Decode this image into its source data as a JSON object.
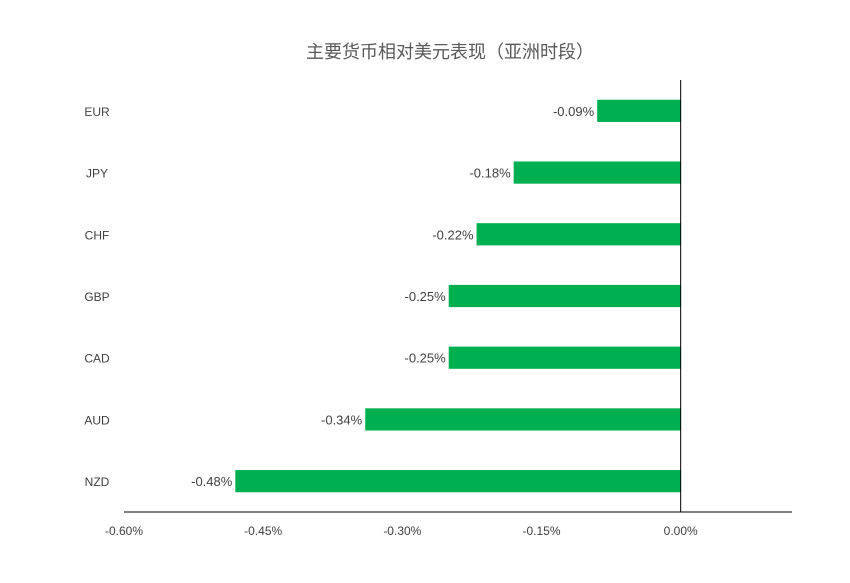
{
  "chart_data": {
    "type": "bar",
    "orientation": "horizontal",
    "title": "主要货币相对美元表现（亚洲时段）",
    "categories": [
      "EUR",
      "JPY",
      "CHF",
      "GBP",
      "CAD",
      "AUD",
      "NZD"
    ],
    "values": [
      -0.09,
      -0.18,
      -0.22,
      -0.25,
      -0.25,
      -0.34,
      -0.48
    ],
    "data_labels": [
      "-0.09%",
      "-0.18%",
      "-0.22%",
      "-0.25%",
      "-0.25%",
      "-0.34%",
      "-0.48%"
    ],
    "xlim": [
      -0.6,
      0.12
    ],
    "xticks": [
      -0.6,
      -0.45,
      -0.3,
      -0.15,
      0.0
    ],
    "xtick_labels": [
      "-0.60%",
      "-0.45%",
      "-0.30%",
      "-0.15%",
      "0.00%"
    ],
    "xlabel": "",
    "ylabel": "",
    "grid": false,
    "legend": "none",
    "bar_color": "#00B050",
    "text_color": "#404040",
    "axis_color": "#000000"
  }
}
